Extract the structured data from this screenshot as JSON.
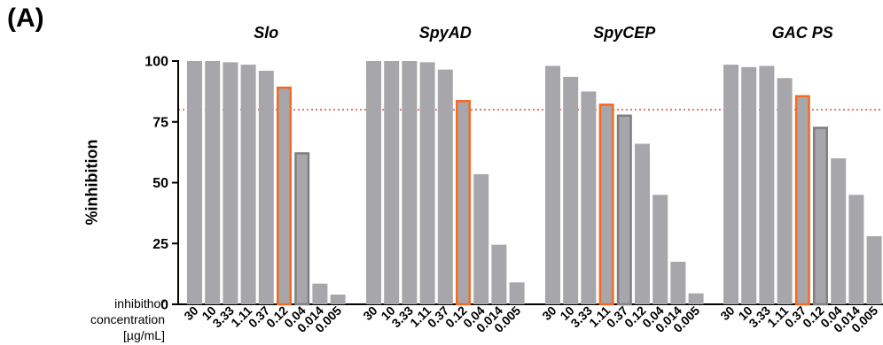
{
  "panel_label": "(A)",
  "chart_data": {
    "type": "bar",
    "ylabel": "%inhibition",
    "ylim": [
      0,
      100
    ],
    "yticks": [
      0,
      25,
      50,
      75,
      100
    ],
    "threshold": 80,
    "x_caption": [
      "inhibithor",
      "concentration",
      "[µg/mL]"
    ],
    "categories": [
      "30",
      "10",
      "3.33",
      "1.11",
      "0.37",
      "0.12",
      "0.04",
      "0.014",
      "0.005"
    ],
    "colors": {
      "bar": "#a7a7ab",
      "dark_outline": "#7f7f84",
      "orange_outline": "#f26b21",
      "threshold_line": "#e04848"
    },
    "panels": [
      {
        "title": "Slo",
        "values": [
          100,
          100,
          99.5,
          98.5,
          96,
          89.5,
          62.5,
          8.5,
          4
        ],
        "outline": {
          "orange": 5,
          "dark": 6
        }
      },
      {
        "title": "SpyAD",
        "values": [
          100,
          100,
          100,
          99.5,
          96.5,
          84,
          53.5,
          24.5,
          9
        ],
        "outline": {
          "orange": 5
        }
      },
      {
        "title": "SpyCEP",
        "values": [
          98,
          93.5,
          87.5,
          82.5,
          78,
          66,
          45,
          17.5,
          4.5
        ],
        "outline": {
          "orange": 3,
          "dark": 4
        }
      },
      {
        "title": "GAC PS",
        "values": [
          98.5,
          97.5,
          98,
          93,
          86,
          73,
          60,
          45,
          28
        ],
        "outline": {
          "orange": 4,
          "dark": 5
        }
      }
    ]
  }
}
